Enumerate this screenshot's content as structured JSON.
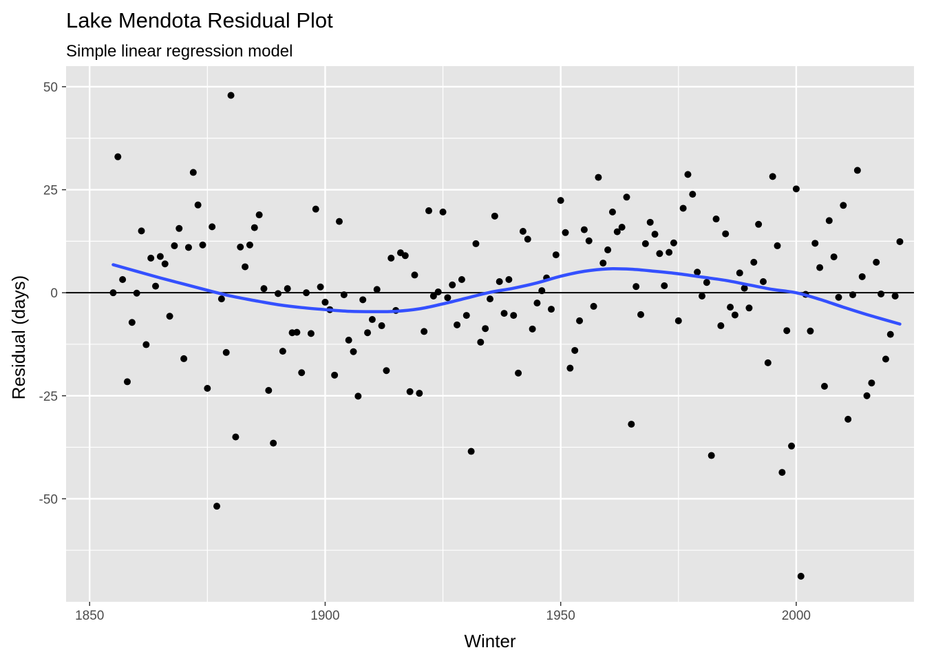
{
  "chart_data": {
    "type": "scatter",
    "title": "Lake Mendota Residual Plot",
    "subtitle": "Simple linear regression model",
    "xlabel": "Winter",
    "ylabel": "Residual (days)",
    "xlim": [
      1845,
      2025
    ],
    "ylim": [
      -75,
      55
    ],
    "x_ticks": [
      1850,
      1900,
      1950,
      2000
    ],
    "x_tick_labels": [
      "1850",
      "1900",
      "1950",
      "2000"
    ],
    "y_ticks": [
      -50,
      -25,
      0,
      25,
      50
    ],
    "y_tick_labels": [
      "-50",
      "-25",
      "0",
      "25",
      "50"
    ],
    "grid": true,
    "reference_line_y": 0,
    "colors": {
      "panel": "#e5e5e5",
      "grid": "#ffffff",
      "points": "#000000",
      "smooth": "#3450ff",
      "reference": "#000000",
      "tick_label": "#4d4d4d"
    },
    "points": [
      [
        1855,
        0
      ],
      [
        1856,
        33
      ],
      [
        1857,
        3.2
      ],
      [
        1858,
        -21.6
      ],
      [
        1859,
        -7.2
      ],
      [
        1860,
        -0.1
      ],
      [
        1861,
        15
      ],
      [
        1862,
        -12.6
      ],
      [
        1863,
        8.4
      ],
      [
        1864,
        1.6
      ],
      [
        1865,
        8.8
      ],
      [
        1866,
        7
      ],
      [
        1867,
        -5.7
      ],
      [
        1868,
        11.4
      ],
      [
        1869,
        15.6
      ],
      [
        1870,
        -16
      ],
      [
        1871,
        11
      ],
      [
        1872,
        29.2
      ],
      [
        1873,
        21.3
      ],
      [
        1874,
        11.6
      ],
      [
        1875,
        -23.2
      ],
      [
        1876,
        16
      ],
      [
        1877,
        -51.8
      ],
      [
        1878,
        -1.5
      ],
      [
        1879,
        -14.5
      ],
      [
        1880,
        47.9
      ],
      [
        1881,
        -35
      ],
      [
        1882,
        11.1
      ],
      [
        1883,
        6.3
      ],
      [
        1884,
        11.6
      ],
      [
        1885,
        15.8
      ],
      [
        1886,
        18.9
      ],
      [
        1887,
        1
      ],
      [
        1888,
        -23.7
      ],
      [
        1889,
        -36.5
      ],
      [
        1890,
        -0.2
      ],
      [
        1891,
        -14.2
      ],
      [
        1892,
        1
      ],
      [
        1893,
        -9.7
      ],
      [
        1894,
        -9.6
      ],
      [
        1895,
        -19.4
      ],
      [
        1896,
        0
      ],
      [
        1897,
        -9.9
      ],
      [
        1898,
        20.3
      ],
      [
        1899,
        1.4
      ],
      [
        1900,
        -2.3
      ],
      [
        1901,
        -4.1
      ],
      [
        1902,
        -20
      ],
      [
        1903,
        17.3
      ],
      [
        1904,
        -0.5
      ],
      [
        1905,
        -11.5
      ],
      [
        1906,
        -14.3
      ],
      [
        1907,
        -25.1
      ],
      [
        1908,
        -1.7
      ],
      [
        1909,
        -9.7
      ],
      [
        1910,
        -6.5
      ],
      [
        1911,
        0.8
      ],
      [
        1912,
        -8
      ],
      [
        1913,
        -18.9
      ],
      [
        1914,
        8.4
      ],
      [
        1915,
        -4.3
      ],
      [
        1916,
        9.7
      ],
      [
        1917,
        9
      ],
      [
        1918,
        -24
      ],
      [
        1919,
        4.3
      ],
      [
        1920,
        -24.4
      ],
      [
        1921,
        -9.4
      ],
      [
        1922,
        19.9
      ],
      [
        1923,
        -0.8
      ],
      [
        1924,
        0.2
      ],
      [
        1925,
        19.6
      ],
      [
        1926,
        -1.2
      ],
      [
        1927,
        1.9
      ],
      [
        1928,
        -7.8
      ],
      [
        1929,
        3.2
      ],
      [
        1930,
        -5.5
      ],
      [
        1931,
        -38.5
      ],
      [
        1932,
        11.9
      ],
      [
        1933,
        -12
      ],
      [
        1934,
        -8.7
      ],
      [
        1935,
        -1.5
      ],
      [
        1936,
        18.6
      ],
      [
        1937,
        2.7
      ],
      [
        1938,
        -5
      ],
      [
        1939,
        3.2
      ],
      [
        1940,
        -5.5
      ],
      [
        1941,
        -19.5
      ],
      [
        1942,
        14.9
      ],
      [
        1943,
        13
      ],
      [
        1944,
        -8.8
      ],
      [
        1945,
        -2.5
      ],
      [
        1946,
        0.5
      ],
      [
        1947,
        3.6
      ],
      [
        1948,
        -4
      ],
      [
        1949,
        9.2
      ],
      [
        1950,
        22.4
      ],
      [
        1951,
        14.6
      ],
      [
        1952,
        -18.3
      ],
      [
        1953,
        -14
      ],
      [
        1954,
        -6.8
      ],
      [
        1955,
        15.3
      ],
      [
        1956,
        12.6
      ],
      [
        1957,
        -3.3
      ],
      [
        1958,
        28
      ],
      [
        1959,
        7.2
      ],
      [
        1960,
        10.4
      ],
      [
        1961,
        19.6
      ],
      [
        1962,
        14.8
      ],
      [
        1963,
        15.9
      ],
      [
        1964,
        23.2
      ],
      [
        1965,
        -31.9
      ],
      [
        1966,
        1.5
      ],
      [
        1967,
        -5.3
      ],
      [
        1968,
        11.9
      ],
      [
        1969,
        17.1
      ],
      [
        1970,
        14.2
      ],
      [
        1971,
        9.5
      ],
      [
        1972,
        1.7
      ],
      [
        1973,
        9.8
      ],
      [
        1974,
        12.1
      ],
      [
        1975,
        -6.8
      ],
      [
        1976,
        20.5
      ],
      [
        1977,
        28.7
      ],
      [
        1978,
        23.9
      ],
      [
        1979,
        5
      ],
      [
        1980,
        -0.8
      ],
      [
        1981,
        2.5
      ],
      [
        1982,
        -39.5
      ],
      [
        1983,
        17.9
      ],
      [
        1984,
        -8
      ],
      [
        1985,
        14.3
      ],
      [
        1986,
        -3.5
      ],
      [
        1987,
        -5.4
      ],
      [
        1988,
        4.8
      ],
      [
        1989,
        1.1
      ],
      [
        1990,
        -3.7
      ],
      [
        1991,
        7.4
      ],
      [
        1992,
        16.6
      ],
      [
        1993,
        2.7
      ],
      [
        1994,
        -17
      ],
      [
        1995,
        28.2
      ],
      [
        1996,
        11.4
      ],
      [
        1997,
        -43.6
      ],
      [
        1998,
        -9.2
      ],
      [
        1999,
        -37.2
      ],
      [
        2000,
        25.2
      ],
      [
        2001,
        -68.8
      ],
      [
        2002,
        -0.4
      ],
      [
        2003,
        -9.3
      ],
      [
        2004,
        12
      ],
      [
        2005,
        6.1
      ],
      [
        2006,
        -22.7
      ],
      [
        2007,
        17.5
      ],
      [
        2008,
        8.7
      ],
      [
        2009,
        -1.1
      ],
      [
        2010,
        21.2
      ],
      [
        2011,
        -30.7
      ],
      [
        2012,
        -0.5
      ],
      [
        2013,
        29.7
      ],
      [
        2014,
        3.9
      ],
      [
        2015,
        -25
      ],
      [
        2016,
        -21.9
      ],
      [
        2017,
        7.4
      ],
      [
        2018,
        -0.3
      ],
      [
        2019,
        -16.1
      ],
      [
        2020,
        -10.1
      ],
      [
        2021,
        -0.8
      ],
      [
        2022,
        12.4
      ]
    ],
    "smooth": [
      [
        1855,
        6.8
      ],
      [
        1860,
        5.2
      ],
      [
        1865,
        3.6
      ],
      [
        1870,
        2.1
      ],
      [
        1875,
        0.6
      ],
      [
        1880,
        -0.8
      ],
      [
        1885,
        -1.9
      ],
      [
        1890,
        -2.9
      ],
      [
        1895,
        -3.6
      ],
      [
        1900,
        -4.1
      ],
      [
        1905,
        -4.5
      ],
      [
        1910,
        -4.6
      ],
      [
        1915,
        -4.5
      ],
      [
        1920,
        -3.9
      ],
      [
        1925,
        -2.7
      ],
      [
        1930,
        -1.3
      ],
      [
        1935,
        0.1
      ],
      [
        1940,
        1.1
      ],
      [
        1945,
        2.4
      ],
      [
        1950,
        4
      ],
      [
        1955,
        5.2
      ],
      [
        1960,
        5.8
      ],
      [
        1965,
        5.7
      ],
      [
        1970,
        5.2
      ],
      [
        1975,
        4.6
      ],
      [
        1980,
        3.8
      ],
      [
        1985,
        3
      ],
      [
        1990,
        1.9
      ],
      [
        1995,
        0.8
      ],
      [
        2000,
        0
      ],
      [
        2005,
        -1.6
      ],
      [
        2010,
        -3.5
      ],
      [
        2015,
        -5.3
      ],
      [
        2022,
        -7.6
      ]
    ]
  }
}
